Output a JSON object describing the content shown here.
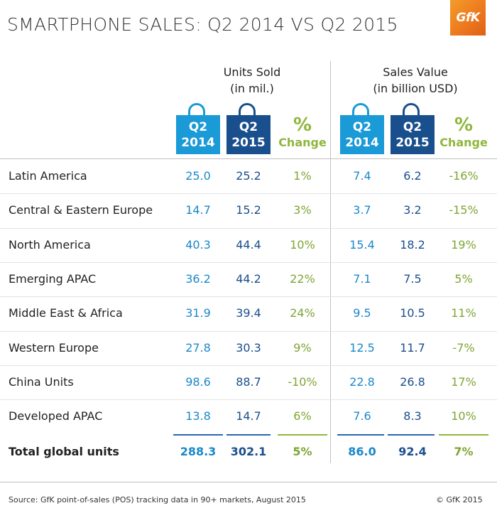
{
  "header": {
    "title": "SMARTPHONE SALES: Q2 2014 VS Q2 2015",
    "logo_text": "GfK"
  },
  "chart_data": {
    "type": "table",
    "title": "SMARTPHONE SALES: Q2 2014 VS Q2 2015",
    "groups": [
      {
        "label_line1": "Units Sold",
        "label_line2": "(in mil.)"
      },
      {
        "label_line1": "Sales Value",
        "label_line2": "(in billion USD)"
      }
    ],
    "columns": [
      {
        "kind": "bag",
        "style": "light",
        "line1": "Q2",
        "line2": "2014"
      },
      {
        "kind": "bag",
        "style": "dark",
        "line1": "Q2",
        "line2": "2015"
      },
      {
        "kind": "pct",
        "line1": "%",
        "line2": "Change"
      },
      {
        "kind": "bag",
        "style": "light",
        "line1": "Q2",
        "line2": "2014"
      },
      {
        "kind": "bag",
        "style": "dark",
        "line1": "Q2",
        "line2": "2015"
      },
      {
        "kind": "pct",
        "line1": "%",
        "line2": "Change"
      }
    ],
    "rows": [
      {
        "region": "Latin America",
        "values": [
          "25.0",
          "25.2",
          "1%",
          "7.4",
          "6.2",
          "-16%"
        ]
      },
      {
        "region": "Central & Eastern Europe",
        "values": [
          "14.7",
          "15.2",
          "3%",
          "3.7",
          "3.2",
          "-15%"
        ]
      },
      {
        "region": "North America",
        "values": [
          "40.3",
          "44.4",
          "10%",
          "15.4",
          "18.2",
          "19%"
        ]
      },
      {
        "region": "Emerging APAC",
        "values": [
          "36.2",
          "44.2",
          "22%",
          "7.1",
          "7.5",
          "5%"
        ]
      },
      {
        "region": "Middle East & Africa",
        "values": [
          "31.9",
          "39.4",
          "24%",
          "9.5",
          "10.5",
          "11%"
        ]
      },
      {
        "region": "Western Europe",
        "values": [
          "27.8",
          "30.3",
          "9%",
          "12.5",
          "11.7",
          "-7%"
        ]
      },
      {
        "region": "China Units",
        "values": [
          "98.6",
          "88.7",
          "-10%",
          "22.8",
          "26.8",
          "17%"
        ]
      },
      {
        "region": "Developed APAC",
        "values": [
          "13.8",
          "14.7",
          "6%",
          "7.6",
          "8.3",
          "10%"
        ]
      }
    ],
    "total": {
      "region": "Total global units",
      "values": [
        "288.3",
        "302.1",
        "5%",
        "86.0",
        "92.4",
        "7%"
      ]
    }
  },
  "footer": {
    "source": "Source: GfK point-of-sales (POS) tracking data in 90+ markets, August 2015",
    "copyright": "© GfK 2015"
  },
  "colors": {
    "light_blue": "#1a9ad6",
    "dark_blue": "#1a4f8d",
    "green": "#8fb63c",
    "logo_orange": "#ee7d1f"
  }
}
